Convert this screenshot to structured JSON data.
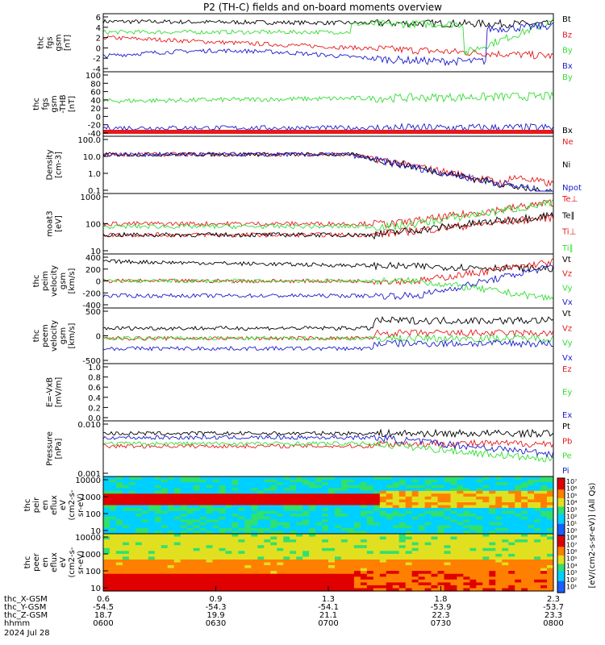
{
  "title": "P2 (TH-C) fields and on-board moments overview",
  "colors": {
    "black": "#000000",
    "red": "#e41a1c",
    "green": "#33dd33",
    "blue": "#1a1acc"
  },
  "chart_data": {
    "type": "line",
    "x_ticks": [
      "0.6",
      "0.9",
      "1.3",
      "1.8",
      "2.3"
    ],
    "ephemeris": [
      {
        "label": "thc_X-GSM",
        "values": [
          "0.6",
          "0.9",
          "1.3",
          "1.8",
          "2.3"
        ]
      },
      {
        "label": "thc_Y-GSM",
        "values": [
          "-54.5",
          "-54.3",
          "-54.1",
          "-53.9",
          "-53.7"
        ]
      },
      {
        "label": "thc_Z-GSM",
        "values": [
          "18.7",
          "19.9",
          "21.1",
          "22.3",
          "23.3"
        ]
      },
      {
        "label": "hhmm",
        "values": [
          "0600",
          "0630",
          "0700",
          "0730",
          "0800"
        ]
      }
    ],
    "date": "2024 Jul 28",
    "panels": [
      {
        "ylabel": [
          "thc",
          "fgs",
          "gsm",
          "[nT]"
        ],
        "ticks": [
          "6",
          "4",
          "2",
          "0",
          "-2",
          "-4"
        ],
        "ylim": [
          -5,
          6.5
        ],
        "legend": [
          {
            "text": "Bt",
            "color": "black"
          },
          {
            "text": "Bz",
            "color": "red"
          },
          {
            "text": "By",
            "color": "green"
          },
          {
            "text": "Bx",
            "color": "blue"
          }
        ]
      },
      {
        "ylabel": [
          "thc",
          "fgs",
          "gsm",
          "-THB",
          "[nT]"
        ],
        "ticks": [
          "100",
          "80",
          "60",
          "40",
          "20",
          "0",
          "-20",
          "-40"
        ],
        "ylim": [
          -45,
          100
        ],
        "legend": [
          {
            "text": "By",
            "color": "green"
          },
          {
            "text": "Bx",
            "color": "black"
          }
        ]
      },
      {
        "ylabel": [
          "Density",
          "[cm-3]"
        ],
        "ticks": [
          "100.0",
          "10.0",
          "1.0",
          "0.1"
        ],
        "ylim": [
          0.07,
          130
        ],
        "log": true,
        "legend": [
          {
            "text": "Ne",
            "color": "red"
          },
          {
            "text": "Ni",
            "color": "black"
          },
          {
            "text": "Npot",
            "color": "blue"
          }
        ]
      },
      {
        "ylabel": [
          "moat3",
          "[eV]"
        ],
        "ticks": [
          "1000",
          "100",
          "10"
        ],
        "ylim": [
          8,
          1500
        ],
        "log": true,
        "legend": [
          {
            "text": "Te⊥",
            "color": "red"
          },
          {
            "text": "Te∥",
            "color": "black"
          },
          {
            "text": "Ti⊥",
            "color": "red"
          },
          {
            "text": "Ti∥",
            "color": "green"
          }
        ]
      },
      {
        "ylabel": [
          "thc",
          "peim",
          "velocity",
          "gsm",
          "[km/s]"
        ],
        "ticks": [
          "400",
          "200",
          "0",
          "-200",
          "-400"
        ],
        "ylim": [
          -430,
          430
        ],
        "legend": [
          {
            "text": "Vt",
            "color": "black"
          },
          {
            "text": "Vz",
            "color": "red"
          },
          {
            "text": "Vy",
            "color": "green"
          },
          {
            "text": "Vx",
            "color": "blue"
          }
        ]
      },
      {
        "ylabel": [
          "thc",
          "peem",
          "velocity",
          "gsm",
          "[km/s]"
        ],
        "ticks": [
          "500",
          "0",
          "-500"
        ],
        "ylim": [
          -800,
          1000
        ],
        "legend": [
          {
            "text": "Vt",
            "color": "black"
          },
          {
            "text": "Vz",
            "color": "red"
          },
          {
            "text": "Vy",
            "color": "green"
          },
          {
            "text": "Vx",
            "color": "blue"
          }
        ]
      },
      {
        "ylabel": [
          "E=-VxB",
          "[mV/m]"
        ],
        "ticks": [
          "1.0",
          "0.8",
          "0.6",
          "0.4",
          "0.2",
          "0.0"
        ],
        "ylim": [
          -0.05,
          1.0
        ],
        "legend": [
          {
            "text": "Ez",
            "color": "red"
          },
          {
            "text": "Ey",
            "color": "green"
          },
          {
            "text": "Ex",
            "color": "blue"
          }
        ]
      },
      {
        "ylabel": [
          "Pressure",
          "[nPa]"
        ],
        "ticks": [
          "0.010",
          "0.001"
        ],
        "ylim": [
          0.0006,
          0.06
        ],
        "log": true,
        "legend": [
          {
            "text": "Pt",
            "color": "black"
          },
          {
            "text": "Pb",
            "color": "red"
          },
          {
            "text": "Pe",
            "color": "green"
          },
          {
            "text": "Pi",
            "color": "blue"
          }
        ]
      },
      {
        "ylabel": [
          "thc",
          "peir",
          "en",
          "eflux",
          "eV",
          "(cm2-s-",
          "sr-eV)"
        ],
        "ticks": [
          "10000",
          "1000",
          "100",
          "10"
        ],
        "spectrogram": true
      },
      {
        "ylabel": [
          "thc",
          "peer",
          "en",
          "eflux",
          "eV",
          "(cm2-s-",
          "sr-eV)"
        ],
        "ticks": [
          "10000",
          "1000",
          "100",
          "10"
        ],
        "spectrogram": true
      }
    ],
    "colorbar": {
      "label": "[eV/(cm2-s-sr-eV)] (All Qs)",
      "ticks": [
        "10⁷",
        "10⁶",
        "10⁵",
        "10⁴",
        "10³",
        "10²",
        "10¹",
        "10⁰",
        "10⁸",
        "10⁷",
        "10⁶",
        "10⁵",
        "10⁴",
        "10³",
        "10²",
        "10¹"
      ]
    }
  }
}
